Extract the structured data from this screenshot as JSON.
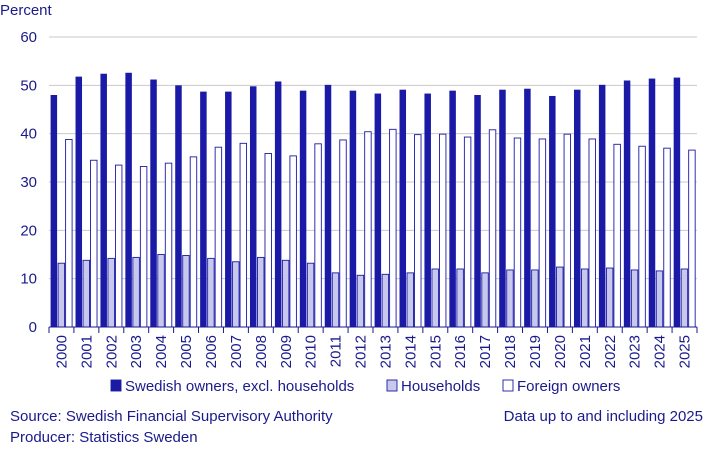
{
  "chart_data": {
    "type": "bar",
    "ylabel": "Percent",
    "ylim": [
      0,
      60
    ],
    "yticks": [
      0,
      10,
      20,
      30,
      40,
      50,
      60
    ],
    "grid": "horizontal",
    "legend_position": "bottom",
    "categories": [
      "2000",
      "2001",
      "2002",
      "2003",
      "2004",
      "2005",
      "2006",
      "2007",
      "2008",
      "2009",
      "2010",
      "2011",
      "2012",
      "2013",
      "2014",
      "2015",
      "2016",
      "2017",
      "2018",
      "2019",
      "2020",
      "2021",
      "2022",
      "2023",
      "2024",
      "2025"
    ],
    "series": [
      {
        "name": "Swedish owners, excl. households",
        "color": "#1a1aa6",
        "values": [
          48.0,
          51.8,
          52.4,
          52.6,
          51.2,
          50.0,
          48.7,
          48.7,
          49.8,
          50.8,
          48.9,
          50.1,
          48.9,
          48.3,
          49.1,
          48.3,
          48.9,
          48.0,
          49.1,
          49.3,
          47.8,
          49.1,
          50.1,
          51.0,
          51.4,
          51.6
        ]
      },
      {
        "name": "Households",
        "color": "#c8c8ec",
        "values": [
          13.2,
          13.8,
          14.2,
          14.4,
          15.0,
          14.8,
          14.2,
          13.5,
          14.4,
          13.8,
          13.2,
          11.2,
          10.7,
          10.9,
          11.2,
          12.0,
          12.0,
          11.2,
          11.8,
          11.8,
          12.4,
          12.0,
          12.2,
          11.8,
          11.6,
          12.0
        ]
      },
      {
        "name": "Foreign owners",
        "color": "#ffffff",
        "values": [
          38.8,
          34.5,
          33.5,
          33.2,
          33.9,
          35.2,
          37.2,
          38.0,
          35.9,
          35.4,
          37.9,
          38.7,
          40.4,
          40.9,
          39.8,
          39.9,
          39.3,
          40.8,
          39.1,
          38.9,
          39.9,
          38.9,
          37.8,
          37.4,
          37.0,
          36.6
        ]
      }
    ]
  },
  "footer": {
    "source": "Source: Swedish Financial  Supervisory Authority",
    "producer": "Producer:  Statistics Sweden",
    "note": "Data up to and including 2025"
  }
}
